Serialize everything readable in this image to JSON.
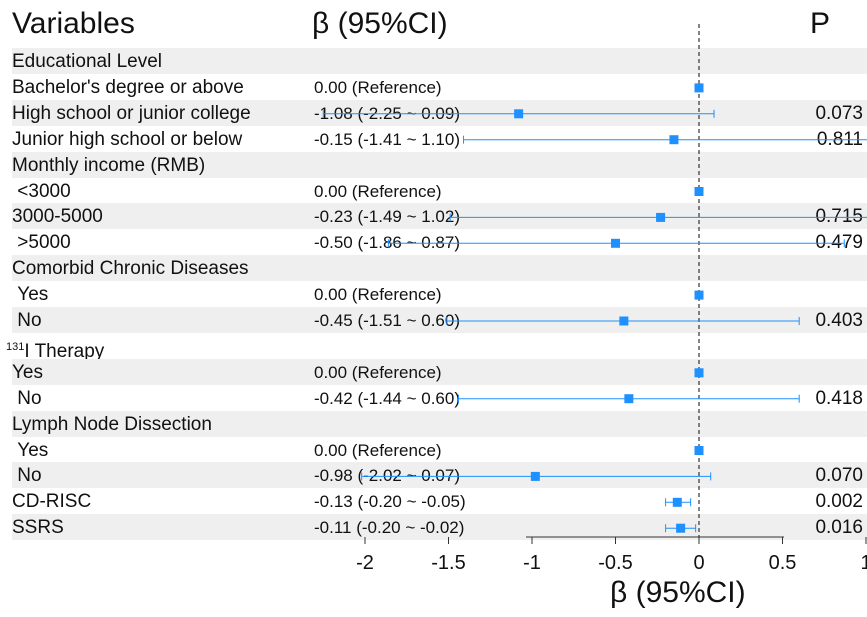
{
  "headers": {
    "variables": "Variables",
    "beta": "β (95%CI)",
    "p": "P"
  },
  "chart_data": {
    "type": "forest",
    "xlabel": "β (95%CI)",
    "xlim": [
      -2.1,
      1.0
    ],
    "xticks": [
      "-2",
      "-1.5",
      "-1",
      "-0.5",
      "0",
      "0.5",
      "1"
    ],
    "xtick_values": [
      -2,
      -1.5,
      -1,
      -0.5,
      0,
      0.5,
      1
    ],
    "reference_line": 0,
    "marker_color": "#1e90ff",
    "rows": [
      {
        "label": "Educational Level",
        "ci_text": "",
        "p": "",
        "is_group": true
      },
      {
        "label": "Bachelor's degree or above",
        "ci_text": "0.00 (Reference)",
        "p": "",
        "beta": 0.0,
        "lower": 0.0,
        "upper": 0.0
      },
      {
        "label": "High school or junior college",
        "ci_text": "-1.08 (-2.25 ~ 0.09)",
        "p": "0.073",
        "beta": -1.08,
        "lower": -2.25,
        "upper": 0.09
      },
      {
        "label": "Junior high school or below",
        "ci_text": "-0.15 (-1.41 ~ 1.10)",
        "p": "0.811",
        "beta": -0.15,
        "lower": -1.41,
        "upper": 1.1
      },
      {
        "label": "Monthly income (RMB)",
        "ci_text": "",
        "p": "",
        "is_group": true
      },
      {
        "label": " <3000",
        "ci_text": "0.00 (Reference)",
        "p": "",
        "beta": 0.0,
        "lower": 0.0,
        "upper": 0.0
      },
      {
        "label": "3000-5000",
        "ci_text": "-0.23 (-1.49 ~ 1.02)",
        "p": "0.715",
        "beta": -0.23,
        "lower": -1.49,
        "upper": 1.02
      },
      {
        "label": " >5000",
        "ci_text": "-0.50 (-1.86 ~ 0.87)",
        "p": "0.479",
        "beta": -0.5,
        "lower": -1.86,
        "upper": 0.87
      },
      {
        "label": "Comorbid Chronic Diseases",
        "ci_text": "",
        "p": "",
        "is_group": true
      },
      {
        "label": " Yes",
        "ci_text": "0.00 (Reference)",
        "p": "",
        "beta": 0.0,
        "lower": 0.0,
        "upper": 0.0
      },
      {
        "label": " No",
        "ci_text": "-0.45 (-1.51 ~ 0.60)",
        "p": "0.403",
        "beta": -0.45,
        "lower": -1.51,
        "upper": 0.6
      },
      {
        "label": "I Therapy",
        "sup": "131",
        "ci_text": "",
        "p": "",
        "is_group": true
      },
      {
        "label": "Yes",
        "ci_text": "0.00 (Reference)",
        "p": "",
        "beta": 0.0,
        "lower": 0.0,
        "upper": 0.0
      },
      {
        "label": " No",
        "ci_text": "-0.42 (-1.44 ~ 0.60)",
        "p": "0.418",
        "beta": -0.42,
        "lower": -1.44,
        "upper": 0.6
      },
      {
        "label": "Lymph Node Dissection",
        "ci_text": "",
        "p": "",
        "is_group": true
      },
      {
        "label": " Yes",
        "ci_text": "0.00 (Reference)",
        "p": "",
        "beta": 0.0,
        "lower": 0.0,
        "upper": 0.0
      },
      {
        "label": " No",
        "ci_text": "-0.98 (-2.02 ~ 0.07)",
        "p": "0.070",
        "beta": -0.98,
        "lower": -2.02,
        "upper": 0.07
      },
      {
        "label": "CD-RISC",
        "ci_text": "-0.13 (-0.20 ~ -0.05)",
        "p": "0.002",
        "beta": -0.13,
        "lower": -0.2,
        "upper": -0.05
      },
      {
        "label": "SSRS",
        "ci_text": "-0.11 (-0.20 ~ -0.02)",
        "p": "0.016",
        "beta": -0.11,
        "lower": -0.2,
        "upper": -0.02
      }
    ]
  }
}
